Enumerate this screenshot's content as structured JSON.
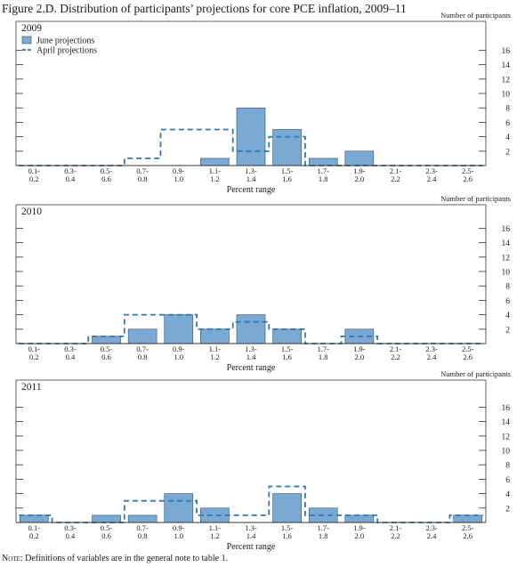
{
  "figure": {
    "title": "Figure 2.D. Distribution of participants’ projections for core PCE inflation, 2009–11",
    "note_label": "Note:",
    "note_text": "Definitions of variables are in the general note to table 1."
  },
  "colors": {
    "bar_fill": "#7aaad4",
    "bar_stroke": "#2e4f6e",
    "april_line": "#2f78b5",
    "axis": "#333333",
    "text": "#1a1a1a"
  },
  "chart_data": [
    {
      "type": "bar",
      "title": "2009",
      "xlabel": "Percent range",
      "ylabel": "Number of participants",
      "ylim": [
        0,
        16
      ],
      "yticks": [
        2,
        4,
        6,
        8,
        10,
        12,
        14,
        16
      ],
      "legend": {
        "placement": "top-left",
        "entries": [
          "June projections",
          "April projections"
        ]
      },
      "categories": [
        [
          "0.1-",
          "0.2"
        ],
        [
          "0.3-",
          "0.4"
        ],
        [
          "0.5-",
          "0.6"
        ],
        [
          "0.7-",
          "0.8"
        ],
        [
          "0.9-",
          "1.0"
        ],
        [
          "1.1-",
          "1.2"
        ],
        [
          "1.3-",
          "1.4"
        ],
        [
          "1.5-",
          "1.6"
        ],
        [
          "1.7-",
          "1.8"
        ],
        [
          "1.9-",
          "2.0"
        ],
        [
          "2.1-",
          "2.2"
        ],
        [
          "2.3-",
          "2.4"
        ],
        [
          "2.5-",
          "2.6"
        ]
      ],
      "series": [
        {
          "name": "June projections",
          "style": "bar",
          "values": [
            0,
            0,
            0,
            0,
            0,
            1,
            8,
            5,
            1,
            2,
            0,
            0,
            0
          ]
        },
        {
          "name": "April projections",
          "style": "dashed-step",
          "values": [
            0,
            0,
            0,
            1,
            5,
            5,
            2,
            4,
            0,
            0,
            0,
            0,
            0
          ]
        }
      ]
    },
    {
      "type": "bar",
      "title": "2010",
      "xlabel": "Percent range",
      "ylabel": "Number of participants",
      "ylim": [
        0,
        16
      ],
      "yticks": [
        2,
        4,
        6,
        8,
        10,
        12,
        14,
        16
      ],
      "categories": [
        [
          "0.1-",
          "0.2"
        ],
        [
          "0.3-",
          "0.4"
        ],
        [
          "0.5-",
          "0.6"
        ],
        [
          "0.7-",
          "0.8"
        ],
        [
          "0.9-",
          "1.0"
        ],
        [
          "1.1-",
          "1.2"
        ],
        [
          "1.3-",
          "1.4"
        ],
        [
          "1.5-",
          "1.6"
        ],
        [
          "1.7-",
          "1.8"
        ],
        [
          "1.9-",
          "2.0"
        ],
        [
          "2.1-",
          "2.2"
        ],
        [
          "2.3-",
          "2.4"
        ],
        [
          "2.5-",
          "2.6"
        ]
      ],
      "series": [
        {
          "name": "June projections",
          "style": "bar",
          "values": [
            0,
            0,
            1,
            2,
            4,
            2,
            4,
            2,
            0,
            2,
            0,
            0,
            0
          ]
        },
        {
          "name": "April projections",
          "style": "dashed-step",
          "values": [
            0,
            0,
            1,
            4,
            4,
            2,
            3,
            2,
            0,
            1,
            0,
            0,
            0
          ]
        }
      ]
    },
    {
      "type": "bar",
      "title": "2011",
      "xlabel": "Percent range",
      "ylabel": "Number of participants",
      "ylim": [
        0,
        16
      ],
      "yticks": [
        2,
        4,
        6,
        8,
        10,
        12,
        14,
        16
      ],
      "categories": [
        [
          "0.1-",
          "0.2"
        ],
        [
          "0.3-",
          "0.4"
        ],
        [
          "0.5-",
          "0.6"
        ],
        [
          "0.7-",
          "0.8"
        ],
        [
          "0.9-",
          "1.0"
        ],
        [
          "1.1-",
          "1.2"
        ],
        [
          "1.3-",
          "1.4"
        ],
        [
          "1.5-",
          "1.6"
        ],
        [
          "1.7-",
          "1.8"
        ],
        [
          "1.9-",
          "2.0"
        ],
        [
          "2.1-",
          "2.2"
        ],
        [
          "2.3-",
          "2.4"
        ],
        [
          "2.5-",
          "2.6"
        ]
      ],
      "series": [
        {
          "name": "June projections",
          "style": "bar",
          "values": [
            1,
            0,
            1,
            1,
            4,
            2,
            0,
            4,
            2,
            1,
            0,
            0,
            1
          ]
        },
        {
          "name": "April projections",
          "style": "dashed-step",
          "values": [
            1,
            0,
            0,
            3,
            3,
            1,
            1,
            5,
            1,
            1,
            0,
            0,
            1
          ]
        }
      ]
    }
  ]
}
